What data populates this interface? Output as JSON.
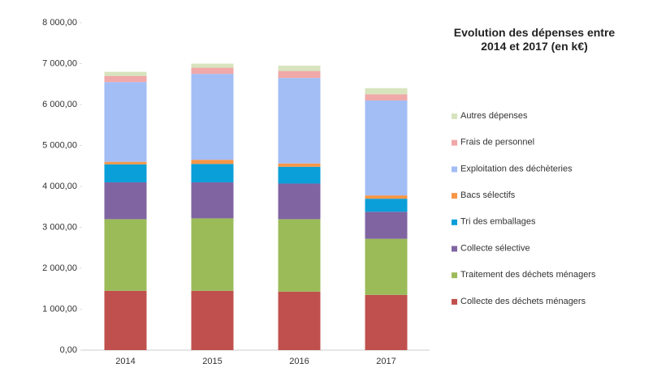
{
  "chart_data": {
    "type": "stacked_bar",
    "title": "Evolution des dépenses entre 2014 et 2017 (en k€)",
    "categories": [
      "2014",
      "2015",
      "2016",
      "2017"
    ],
    "series": [
      {
        "name": "Collecte des déchets ménagers",
        "color": "#c0504d",
        "values": [
          1450,
          1450,
          1430,
          1350
        ]
      },
      {
        "name": "Traitement des déchets ménagers",
        "color": "#9bbb59",
        "values": [
          1750,
          1770,
          1770,
          1370
        ]
      },
      {
        "name": "Collecte sélective",
        "color": "#8064a2",
        "values": [
          900,
          880,
          870,
          660
        ]
      },
      {
        "name": "Tri des emballages",
        "color": "#0a9fd8",
        "values": [
          440,
          450,
          410,
          320
        ]
      },
      {
        "name": "Bacs sélectifs",
        "color": "#f79646",
        "values": [
          60,
          100,
          80,
          80
        ]
      },
      {
        "name": "Exploitation des déchèteries",
        "color": "#a3bdf5",
        "values": [
          1950,
          2100,
          2090,
          2320
        ]
      },
      {
        "name": "Frais de personnel",
        "color": "#f0a8a8",
        "values": [
          150,
          150,
          170,
          150
        ]
      },
      {
        "name": "Autres dépenses",
        "color": "#d7e4bd",
        "values": [
          100,
          100,
          130,
          150
        ]
      }
    ],
    "ylim": [
      0,
      8000
    ],
    "yticks": [
      {
        "value": 0,
        "label": "0,00"
      },
      {
        "value": 1000,
        "label": "1 000,00"
      },
      {
        "value": 2000,
        "label": "2 000,00"
      },
      {
        "value": 3000,
        "label": "3 000,00"
      },
      {
        "value": 4000,
        "label": "4 000,00"
      },
      {
        "value": 5000,
        "label": "5 000,00"
      },
      {
        "value": 6000,
        "label": "6 000,00"
      },
      {
        "value": 7000,
        "label": "7 000,00"
      },
      {
        "value": 8000,
        "label": "8 000,00"
      }
    ],
    "legend": "right",
    "grid": false
  }
}
